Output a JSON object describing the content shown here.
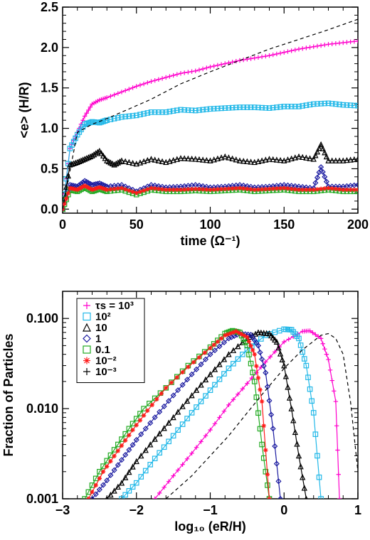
{
  "chart_data": [
    {
      "type": "line",
      "xlabel": "time (Ω⁻¹)",
      "ylabel": "<e> (H/R)",
      "xlim": [
        0,
        200
      ],
      "ylim": [
        -0.05,
        2.5
      ],
      "xticks": [
        "0",
        "50",
        "100",
        "150",
        "200"
      ],
      "yticks": [
        "0.0",
        "0.5",
        "1.0",
        "1.5",
        "2.0",
        "2.5"
      ],
      "series": [
        {
          "color": "#ff00cc",
          "marker": "plus",
          "x": [
            0,
            5,
            10,
            15,
            20,
            25,
            30,
            40,
            50,
            60,
            70,
            80,
            90,
            100,
            110,
            120,
            130,
            140,
            150,
            160,
            170,
            180,
            190,
            200
          ],
          "values": [
            0.0,
            0.75,
            0.95,
            1.15,
            1.3,
            1.35,
            1.38,
            1.45,
            1.52,
            1.58,
            1.63,
            1.68,
            1.71,
            1.76,
            1.8,
            1.84,
            1.87,
            1.9,
            1.94,
            1.98,
            2.01,
            2.04,
            2.06,
            2.08
          ]
        },
        {
          "color": "#22b8e8",
          "marker": "square",
          "x": [
            0,
            5,
            10,
            15,
            20,
            25,
            30,
            40,
            50,
            60,
            70,
            80,
            90,
            100,
            110,
            120,
            130,
            140,
            150,
            160,
            170,
            180,
            190,
            200
          ],
          "values": [
            0.0,
            0.75,
            0.92,
            1.05,
            1.08,
            1.07,
            1.1,
            1.14,
            1.16,
            1.2,
            1.2,
            1.23,
            1.22,
            1.24,
            1.25,
            1.26,
            1.26,
            1.25,
            1.27,
            1.27,
            1.3,
            1.31,
            1.29,
            1.28
          ]
        },
        {
          "color": "#000000",
          "marker": "triangle",
          "x": [
            0,
            5,
            10,
            15,
            20,
            25,
            30,
            35,
            40,
            50,
            60,
            70,
            80,
            90,
            100,
            110,
            120,
            130,
            140,
            150,
            160,
            170,
            175,
            180,
            190,
            200
          ],
          "values": [
            0.0,
            0.55,
            0.58,
            0.62,
            0.66,
            0.72,
            0.6,
            0.55,
            0.6,
            0.56,
            0.62,
            0.58,
            0.63,
            0.62,
            0.6,
            0.65,
            0.6,
            0.58,
            0.62,
            0.6,
            0.65,
            0.62,
            0.8,
            0.6,
            0.6,
            0.62
          ]
        },
        {
          "color": "#1a1aa0",
          "marker": "diamond",
          "x": [
            0,
            5,
            10,
            15,
            20,
            25,
            30,
            40,
            50,
            60,
            70,
            80,
            90,
            100,
            110,
            120,
            130,
            140,
            150,
            160,
            170,
            175,
            180,
            190,
            200
          ],
          "values": [
            0.0,
            0.3,
            0.28,
            0.35,
            0.3,
            0.32,
            0.28,
            0.3,
            0.22,
            0.3,
            0.27,
            0.28,
            0.3,
            0.27,
            0.28,
            0.3,
            0.27,
            0.28,
            0.3,
            0.28,
            0.26,
            0.52,
            0.28,
            0.28,
            0.3
          ]
        },
        {
          "color": "#22aa22",
          "marker": "square",
          "x": [
            0,
            5,
            10,
            15,
            20,
            25,
            30,
            40,
            50,
            60,
            70,
            80,
            90,
            100,
            110,
            120,
            130,
            140,
            150,
            160,
            170,
            180,
            190,
            200
          ],
          "values": [
            0.0,
            0.24,
            0.22,
            0.27,
            0.22,
            0.25,
            0.22,
            0.24,
            0.18,
            0.24,
            0.22,
            0.22,
            0.23,
            0.22,
            0.23,
            0.24,
            0.22,
            0.23,
            0.24,
            0.22,
            0.22,
            0.24,
            0.22,
            0.22
          ]
        },
        {
          "color": "#ff1a1a",
          "marker": "asterisk",
          "x": [
            0,
            5,
            10,
            15,
            20,
            25,
            30,
            40,
            50,
            60,
            70,
            80,
            90,
            100,
            110,
            120,
            130,
            140,
            150,
            160,
            170,
            180,
            190,
            200
          ],
          "values": [
            0.0,
            0.26,
            0.24,
            0.29,
            0.24,
            0.27,
            0.24,
            0.26,
            0.2,
            0.26,
            0.24,
            0.24,
            0.25,
            0.24,
            0.25,
            0.26,
            0.24,
            0.25,
            0.26,
            0.24,
            0.24,
            0.26,
            0.24,
            0.24
          ]
        },
        {
          "color": "#000000",
          "marker": "none",
          "dash": true,
          "x": [
            0,
            10,
            20,
            30,
            40,
            50,
            60,
            80,
            100,
            120,
            140,
            160,
            180,
            200
          ],
          "values": [
            0.0,
            0.95,
            1.05,
            1.12,
            1.2,
            1.28,
            1.36,
            1.55,
            1.7,
            1.84,
            1.98,
            2.1,
            2.22,
            2.35
          ]
        }
      ]
    },
    {
      "type": "line",
      "xlabel": "log₁₀ (eR/H)",
      "ylabel": "Fraction of Particles",
      "xlim": [
        -3,
        1
      ],
      "ylim": [
        0.001,
        0.2
      ],
      "yscale": "log",
      "xticks": [
        "−3",
        "−2",
        "−1",
        "0",
        "1"
      ],
      "yticks": [
        "0.001",
        "0.010",
        "0.100"
      ],
      "legend": {
        "placement": "top-left",
        "entries": [
          {
            "label": "τs = 10³",
            "color": "#ff00cc",
            "marker": "plus"
          },
          {
            "label": "10²",
            "color": "#22b8e8",
            "marker": "square"
          },
          {
            "label": "10",
            "color": "#000000",
            "marker": "triangle"
          },
          {
            "label": "1",
            "color": "#1a1aa0",
            "marker": "diamond"
          },
          {
            "label": "0.1",
            "color": "#22aa22",
            "marker": "square"
          },
          {
            "label": "10⁻²",
            "color": "#ff1a1a",
            "marker": "asterisk"
          },
          {
            "label": "10⁻³",
            "color": "#000000",
            "marker": "plus"
          }
        ]
      },
      "series": [
        {
          "color": "#ff00cc",
          "marker": "plus",
          "x": [
            -1.75,
            -1.5,
            -1.25,
            -1.0,
            -0.75,
            -0.5,
            -0.25,
            0.0,
            0.25,
            0.35,
            0.5,
            0.6,
            0.7,
            0.75
          ],
          "values": [
            0.001,
            0.0018,
            0.0032,
            0.0058,
            0.011,
            0.019,
            0.033,
            0.055,
            0.072,
            0.073,
            0.06,
            0.035,
            0.012,
            0.001
          ]
        },
        {
          "color": "#22b8e8",
          "marker": "square",
          "x": [
            -2.2,
            -2.0,
            -1.75,
            -1.5,
            -1.25,
            -1.0,
            -0.75,
            -0.5,
            -0.25,
            0.0,
            0.1,
            0.2,
            0.3,
            0.4,
            0.5
          ],
          "values": [
            0.001,
            0.0015,
            0.0028,
            0.005,
            0.009,
            0.016,
            0.028,
            0.045,
            0.065,
            0.076,
            0.075,
            0.06,
            0.03,
            0.009,
            0.001
          ]
        },
        {
          "color": "#000000",
          "marker": "triangle",
          "x": [
            -2.4,
            -2.2,
            -2.0,
            -1.75,
            -1.5,
            -1.25,
            -1.0,
            -0.75,
            -0.5,
            -0.35,
            -0.2,
            -0.1,
            0.0,
            0.1,
            0.2,
            0.3
          ],
          "values": [
            0.001,
            0.0015,
            0.0026,
            0.0046,
            0.008,
            0.014,
            0.024,
            0.04,
            0.06,
            0.07,
            0.068,
            0.055,
            0.03,
            0.01,
            0.003,
            0.001
          ]
        },
        {
          "color": "#1a1aa0",
          "marker": "diamond",
          "x": [
            -2.6,
            -2.4,
            -2.2,
            -2.0,
            -1.75,
            -1.5,
            -1.25,
            -1.0,
            -0.75,
            -0.6,
            -0.45,
            -0.35,
            -0.25,
            -0.15,
            -0.05
          ],
          "values": [
            0.001,
            0.0016,
            0.0027,
            0.0045,
            0.008,
            0.014,
            0.024,
            0.04,
            0.06,
            0.068,
            0.066,
            0.05,
            0.025,
            0.006,
            0.001
          ]
        },
        {
          "color": "#22aa22",
          "marker": "square",
          "x": [
            -2.7,
            -2.5,
            -2.3,
            -2.1,
            -1.9,
            -1.6,
            -1.3,
            -1.0,
            -0.8,
            -0.7,
            -0.6,
            -0.5,
            -0.4,
            -0.3,
            -0.2
          ],
          "values": [
            0.001,
            0.002,
            0.0035,
            0.006,
            0.01,
            0.017,
            0.03,
            0.048,
            0.068,
            0.073,
            0.07,
            0.05,
            0.02,
            0.004,
            0.001
          ]
        },
        {
          "color": "#ff1a1a",
          "marker": "asterisk",
          "x": [
            -2.65,
            -2.45,
            -2.25,
            -2.05,
            -1.85,
            -1.6,
            -1.3,
            -1.0,
            -0.8,
            -0.65,
            -0.5,
            -0.4,
            -0.3,
            -0.2
          ],
          "values": [
            0.001,
            0.002,
            0.0034,
            0.0058,
            0.0095,
            0.017,
            0.029,
            0.047,
            0.065,
            0.072,
            0.062,
            0.04,
            0.012,
            0.001
          ]
        },
        {
          "color": "#000000",
          "marker": "none",
          "dash": true,
          "x": [
            -1.6,
            -1.25,
            -1.0,
            -0.75,
            -0.5,
            -0.25,
            0.0,
            0.25,
            0.5,
            0.6,
            0.7,
            0.8,
            0.9,
            1.0
          ],
          "values": [
            0.001,
            0.0018,
            0.003,
            0.005,
            0.009,
            0.016,
            0.028,
            0.045,
            0.065,
            0.068,
            0.06,
            0.04,
            0.012,
            0.002
          ]
        }
      ]
    }
  ]
}
